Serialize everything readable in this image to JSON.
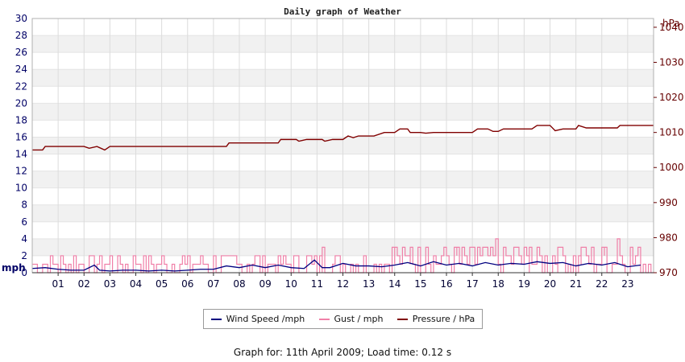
{
  "chart_data": {
    "type": "line",
    "title": "Daily graph of Weather",
    "y_left": {
      "unit": "mph",
      "ylim": [
        0,
        30
      ],
      "ticks": [
        0,
        2,
        4,
        6,
        8,
        10,
        12,
        14,
        16,
        18,
        20,
        22,
        24,
        26,
        28,
        30
      ]
    },
    "y_right": {
      "unit": "hPa",
      "ylim": [
        970,
        1042.5
      ],
      "ticks": [
        970,
        980,
        990,
        1000,
        1010,
        1020,
        1030,
        1040
      ]
    },
    "x": {
      "labels": [
        "01",
        "02",
        "03",
        "04",
        "05",
        "06",
        "07",
        "08",
        "09",
        "10",
        "11",
        "12",
        "13",
        "14",
        "15",
        "16",
        "17",
        "18",
        "19",
        "20",
        "21",
        "22",
        "23"
      ],
      "range_hours": [
        0,
        24
      ]
    },
    "grid": true,
    "legend_position": "bottom",
    "series": [
      {
        "name": "Wind Speed /mph",
        "axis": "left",
        "color": "#000080",
        "type": "line",
        "points": [
          [
            0,
            0.5
          ],
          [
            0.5,
            0.6
          ],
          [
            1,
            0.4
          ],
          [
            1.5,
            0.3
          ],
          [
            2,
            0.3
          ],
          [
            2.4,
            0.9
          ],
          [
            2.6,
            0.3
          ],
          [
            3,
            0.2
          ],
          [
            3.5,
            0.3
          ],
          [
            4,
            0.3
          ],
          [
            4.5,
            0.2
          ],
          [
            5,
            0.3
          ],
          [
            5.5,
            0.2
          ],
          [
            6,
            0.3
          ],
          [
            6.5,
            0.4
          ],
          [
            7,
            0.4
          ],
          [
            7.5,
            0.8
          ],
          [
            8,
            0.6
          ],
          [
            8.5,
            0.9
          ],
          [
            9,
            0.6
          ],
          [
            9.5,
            0.9
          ],
          [
            10,
            0.6
          ],
          [
            10.5,
            0.5
          ],
          [
            10.9,
            1.5
          ],
          [
            11.2,
            0.6
          ],
          [
            11.5,
            0.6
          ],
          [
            12,
            1.1
          ],
          [
            12.5,
            0.8
          ],
          [
            13,
            0.8
          ],
          [
            13.5,
            0.7
          ],
          [
            14,
            0.9
          ],
          [
            14.5,
            1.2
          ],
          [
            15,
            0.8
          ],
          [
            15.5,
            1.3
          ],
          [
            16,
            0.9
          ],
          [
            16.5,
            1.1
          ],
          [
            17,
            0.8
          ],
          [
            17.5,
            1.2
          ],
          [
            18,
            0.9
          ],
          [
            18.5,
            1.1
          ],
          [
            19,
            1.0
          ],
          [
            19.5,
            1.3
          ],
          [
            20,
            1.1
          ],
          [
            20.5,
            1.2
          ],
          [
            21,
            0.8
          ],
          [
            21.5,
            1.1
          ],
          [
            22,
            0.9
          ],
          [
            22.5,
            1.2
          ],
          [
            23,
            0.7
          ],
          [
            23.5,
            0.9
          ]
        ]
      },
      {
        "name": "Gust / mph",
        "axis": "left",
        "color": "#f080a8",
        "type": "spikes",
        "segments": [
          {
            "range": [
              0,
              2
            ],
            "levels": [
              0,
              1,
              2
            ]
          },
          {
            "range": [
              2,
              7
            ],
            "levels": [
              0,
              1,
              2
            ]
          },
          {
            "range": [
              7,
              10
            ],
            "levels": [
              0,
              1,
              2
            ]
          },
          {
            "range": [
              10,
              13.5
            ],
            "levels": [
              0,
              1,
              2
            ]
          },
          {
            "range": [
              13.5,
              16
            ],
            "levels": [
              0,
              1,
              2,
              3
            ]
          },
          {
            "range": [
              16,
              24
            ],
            "levels": [
              0,
              1,
              2,
              3
            ]
          }
        ],
        "peaks": [
          [
            11.2,
            3
          ],
          [
            14,
            3
          ],
          [
            14.3,
            3
          ],
          [
            14.6,
            3
          ],
          [
            14.9,
            3
          ],
          [
            15.2,
            3
          ],
          [
            16.4,
            3
          ],
          [
            17.2,
            3
          ],
          [
            17.4,
            3
          ],
          [
            17.9,
            4
          ],
          [
            19.2,
            3
          ],
          [
            20.3,
            3
          ],
          [
            21.2,
            3
          ],
          [
            21.6,
            3
          ],
          [
            22.1,
            3
          ],
          [
            22.6,
            4
          ],
          [
            23.1,
            3
          ]
        ]
      },
      {
        "name": "Pressure / hPa",
        "axis": "right",
        "color": "#800000",
        "type": "line",
        "points": [
          [
            0,
            1005
          ],
          [
            0.4,
            1005
          ],
          [
            0.5,
            1006
          ],
          [
            2,
            1006
          ],
          [
            2.2,
            1005.5
          ],
          [
            2.5,
            1006
          ],
          [
            2.8,
            1005
          ],
          [
            3,
            1006
          ],
          [
            7.5,
            1006
          ],
          [
            7.6,
            1007
          ],
          [
            9.5,
            1007
          ],
          [
            9.6,
            1008
          ],
          [
            10.2,
            1008
          ],
          [
            10.3,
            1007.5
          ],
          [
            10.6,
            1008
          ],
          [
            11.2,
            1008
          ],
          [
            11.3,
            1007.5
          ],
          [
            11.6,
            1008
          ],
          [
            12,
            1008
          ],
          [
            12.2,
            1009
          ],
          [
            12.4,
            1008.5
          ],
          [
            12.6,
            1009
          ],
          [
            13,
            1009
          ],
          [
            13.2,
            1009
          ],
          [
            13.6,
            1010
          ],
          [
            14,
            1010
          ],
          [
            14.2,
            1011
          ],
          [
            14.5,
            1011
          ],
          [
            14.6,
            1010
          ],
          [
            15,
            1010
          ],
          [
            15.2,
            1009.8
          ],
          [
            15.5,
            1010
          ],
          [
            17,
            1010
          ],
          [
            17.2,
            1011
          ],
          [
            17.6,
            1011
          ],
          [
            17.8,
            1010.3
          ],
          [
            18,
            1010.3
          ],
          [
            18.2,
            1011
          ],
          [
            19.3,
            1011
          ],
          [
            19.5,
            1012
          ],
          [
            20,
            1012
          ],
          [
            20.2,
            1010.5
          ],
          [
            20.5,
            1011
          ],
          [
            21,
            1011
          ],
          [
            21.1,
            1012
          ],
          [
            21.4,
            1011.3
          ],
          [
            22.6,
            1011.3
          ],
          [
            22.7,
            1012
          ],
          [
            24,
            1012
          ]
        ]
      }
    ]
  },
  "footer": {
    "text": "Graph for: 11th April 2009; Load time: 0.12 s"
  }
}
